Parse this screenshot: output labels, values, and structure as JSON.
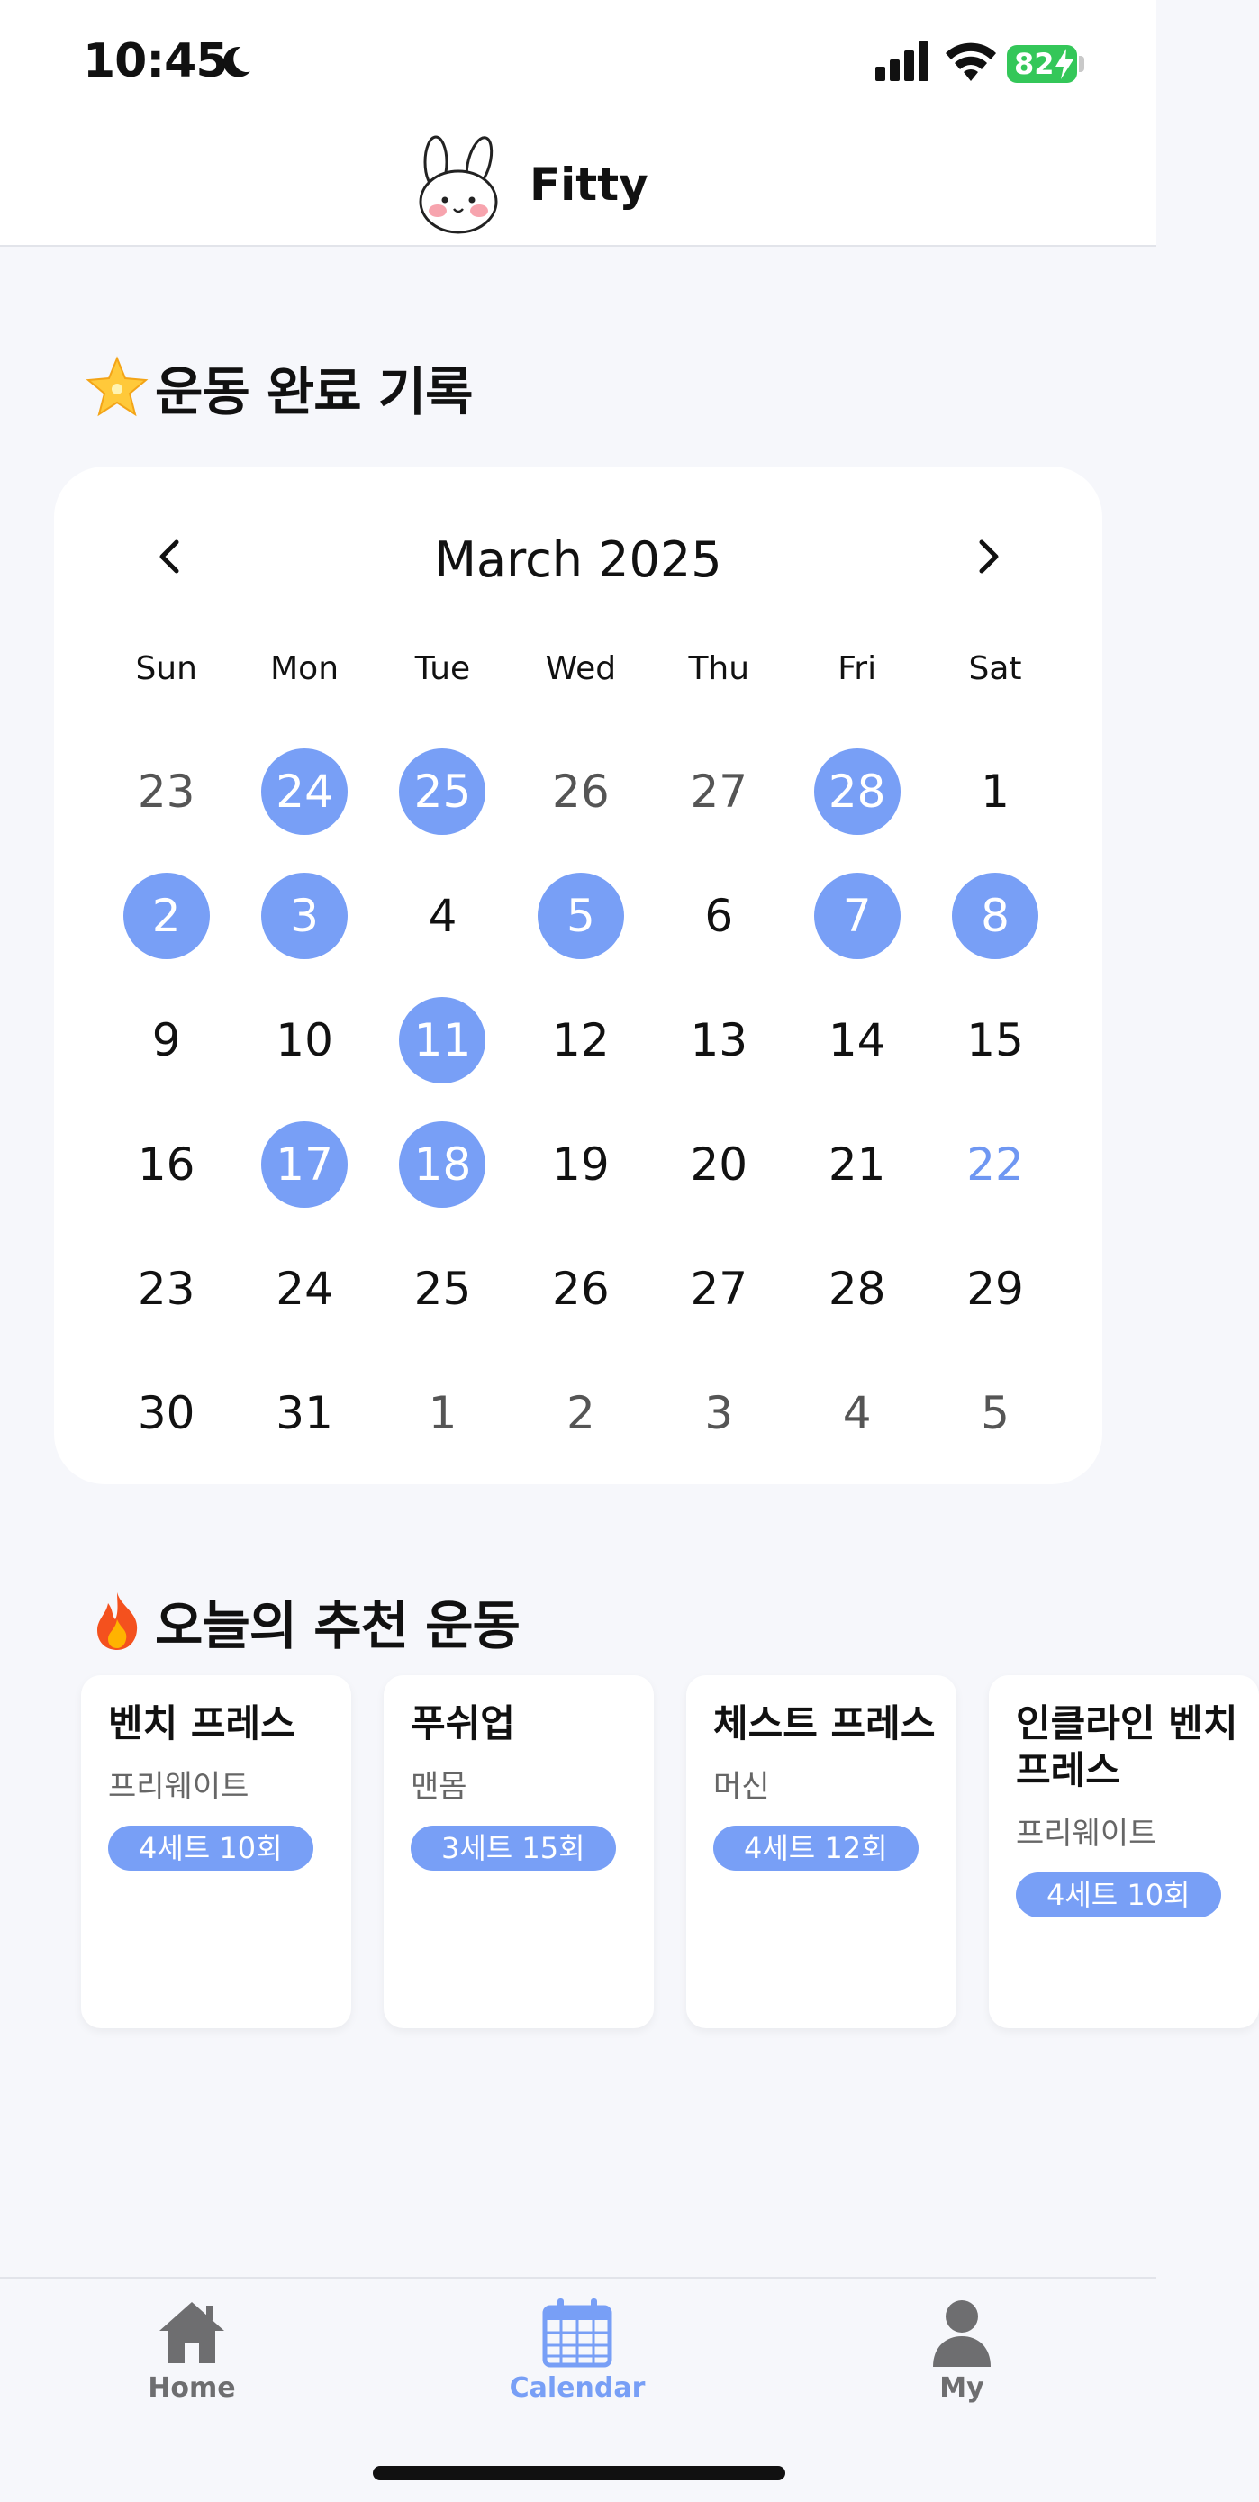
{
  "status_bar": {
    "time": "10:45",
    "battery": "82"
  },
  "header": {
    "app_name": "Fitty"
  },
  "calendar_section": {
    "title": "운동 완료 기록",
    "month_label": "March 2025",
    "weekdays": [
      "Sun",
      "Mon",
      "Tue",
      "Wed",
      "Thu",
      "Fri",
      "Sat"
    ],
    "days": [
      {
        "d": "23",
        "state": "other"
      },
      {
        "d": "24",
        "state": "done"
      },
      {
        "d": "25",
        "state": "done"
      },
      {
        "d": "26",
        "state": "other"
      },
      {
        "d": "27",
        "state": "other"
      },
      {
        "d": "28",
        "state": "done"
      },
      {
        "d": "1",
        "state": "normal"
      },
      {
        "d": "2",
        "state": "done"
      },
      {
        "d": "3",
        "state": "done"
      },
      {
        "d": "4",
        "state": "normal"
      },
      {
        "d": "5",
        "state": "done"
      },
      {
        "d": "6",
        "state": "normal"
      },
      {
        "d": "7",
        "state": "done"
      },
      {
        "d": "8",
        "state": "done"
      },
      {
        "d": "9",
        "state": "normal"
      },
      {
        "d": "10",
        "state": "normal"
      },
      {
        "d": "11",
        "state": "done"
      },
      {
        "d": "12",
        "state": "normal"
      },
      {
        "d": "13",
        "state": "normal"
      },
      {
        "d": "14",
        "state": "normal"
      },
      {
        "d": "15",
        "state": "normal"
      },
      {
        "d": "16",
        "state": "normal"
      },
      {
        "d": "17",
        "state": "done"
      },
      {
        "d": "18",
        "state": "done"
      },
      {
        "d": "19",
        "state": "normal"
      },
      {
        "d": "20",
        "state": "normal"
      },
      {
        "d": "21",
        "state": "normal"
      },
      {
        "d": "22",
        "state": "today"
      },
      {
        "d": "23",
        "state": "normal"
      },
      {
        "d": "24",
        "state": "normal"
      },
      {
        "d": "25",
        "state": "normal"
      },
      {
        "d": "26",
        "state": "normal"
      },
      {
        "d": "27",
        "state": "normal"
      },
      {
        "d": "28",
        "state": "normal"
      },
      {
        "d": "29",
        "state": "normal"
      },
      {
        "d": "30",
        "state": "normal"
      },
      {
        "d": "31",
        "state": "normal"
      },
      {
        "d": "1",
        "state": "other"
      },
      {
        "d": "2",
        "state": "other"
      },
      {
        "d": "3",
        "state": "other"
      },
      {
        "d": "4",
        "state": "other"
      },
      {
        "d": "5",
        "state": "other"
      }
    ]
  },
  "recommend_section": {
    "title": "오늘의 추천 운동",
    "cards": [
      {
        "name": "벤치 프레스",
        "type": "프리웨이트",
        "badge": "4세트 10회"
      },
      {
        "name": "푸쉬업",
        "type": "맨몸",
        "badge": "3세트 15회"
      },
      {
        "name": "체스트 프레스",
        "type": "머신",
        "badge": "4세트 12회"
      },
      {
        "name": "인클라인 벤치 프레스",
        "type": "프리웨이트",
        "badge": "4세트 10회"
      }
    ]
  },
  "tab_bar": {
    "items": [
      {
        "label": "Home",
        "icon": "home-icon",
        "active": false
      },
      {
        "label": "Calendar",
        "icon": "calendar-icon",
        "active": true
      },
      {
        "label": "My",
        "icon": "person-icon",
        "active": false
      }
    ]
  },
  "colors": {
    "accent": "#789FF6",
    "today": "#6F97F2",
    "battery": "#34C759",
    "tab_inactive": "#6E6E70"
  }
}
